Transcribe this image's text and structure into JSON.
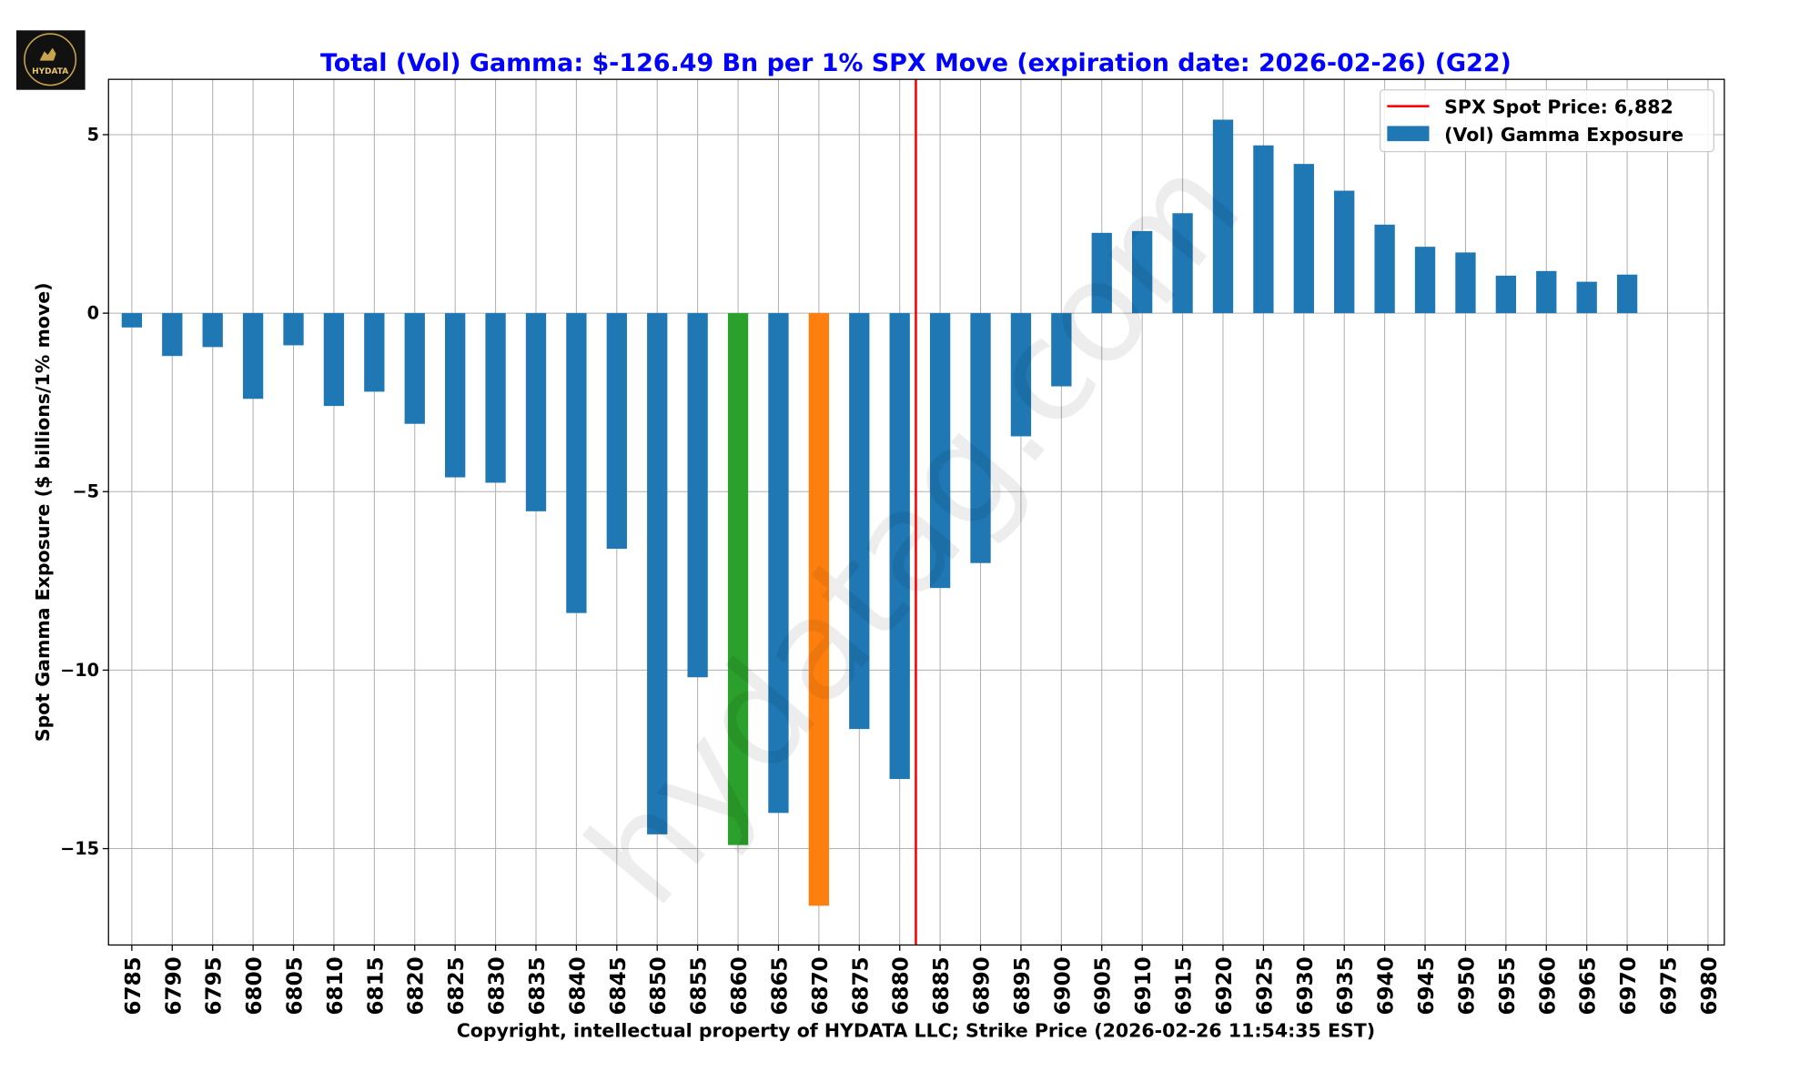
{
  "logo": {
    "text": "HYDATA"
  },
  "watermark": "hydatag.com",
  "chart_data": {
    "type": "bar",
    "title": "Total (Vol) Gamma: $-126.49 Bn per 1% SPX Move (expiration date: 2026-02-26) (G22)",
    "xlabel": "Copyright, intellectual property of HYDATA LLC; Strike Price (2026-02-26 11:54:35 EST)",
    "ylabel": "Spot Gamma Exposure ($ billions/1% move)",
    "ylim": [
      -17.7,
      6.55
    ],
    "yticks": [
      5,
      0,
      -5,
      -10,
      -15
    ],
    "ytick_labels": [
      "5",
      "0",
      "−5",
      "−10",
      "−15"
    ],
    "grid": true,
    "legend_position": "top-right",
    "legend": [
      {
        "label": "SPX Spot Price: 6,882",
        "type": "line",
        "color": "#ff0000"
      },
      {
        "label": "(Vol) Gamma Exposure",
        "type": "bar",
        "color": "#1f77b4"
      }
    ],
    "spot_price": 6882,
    "categories": [
      "6785",
      "6790",
      "6795",
      "6800",
      "6805",
      "6810",
      "6815",
      "6820",
      "6825",
      "6830",
      "6835",
      "6840",
      "6845",
      "6850",
      "6855",
      "6860",
      "6865",
      "6870",
      "6875",
      "6880",
      "6885",
      "6890",
      "6895",
      "6900",
      "6905",
      "6910",
      "6915",
      "6920",
      "6925",
      "6930",
      "6935",
      "6940",
      "6945",
      "6950",
      "6955",
      "6960",
      "6965",
      "6970",
      "6975",
      "6980"
    ],
    "values": [
      -0.4,
      -1.2,
      -0.95,
      -2.4,
      -0.9,
      -2.6,
      -2.2,
      -3.1,
      -4.6,
      -4.75,
      -5.55,
      -8.4,
      -6.6,
      -14.6,
      -10.2,
      -14.9,
      -14.0,
      -16.6,
      -11.65,
      -13.05,
      -7.7,
      -7.0,
      -3.45,
      -2.05,
      2.25,
      2.3,
      2.8,
      5.42,
      4.7,
      4.18,
      3.43,
      2.48,
      1.86,
      1.7,
      1.05,
      1.18,
      0.88,
      1.08,
      0,
      0
    ],
    "highlight": {
      "6860": "#2ca02c",
      "6870": "#ff7f0e"
    },
    "colors": {
      "bar": "#1f77b4",
      "spot_line": "#ff0000",
      "title": "#0000ff",
      "grid": "#b0b0b0"
    }
  }
}
